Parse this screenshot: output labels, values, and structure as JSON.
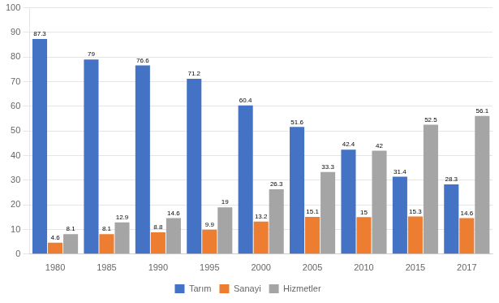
{
  "chart_data": {
    "type": "bar",
    "categories": [
      "1980",
      "1985",
      "1990",
      "1995",
      "2000",
      "2005",
      "2010",
      "2015",
      "2017"
    ],
    "series": [
      {
        "name": "Tarım",
        "color": "#4472C4",
        "values": [
          87.3,
          79,
          76.6,
          71.2,
          60.4,
          51.6,
          42.4,
          31.4,
          28.3
        ]
      },
      {
        "name": "Sanayi",
        "color": "#ED7D31",
        "values": [
          4.6,
          8.1,
          8.8,
          9.9,
          13.2,
          15.1,
          15.0,
          15.3,
          14.6
        ]
      },
      {
        "name": "Hizmetler",
        "color": "#A5A5A5",
        "values": [
          8.1,
          12.9,
          14.6,
          19.0,
          26.3,
          33.3,
          42.0,
          52.5,
          56.1
        ]
      }
    ],
    "ylim": [
      0,
      100
    ],
    "yticks": [
      0,
      10,
      20,
      30,
      40,
      50,
      60,
      70,
      80,
      90,
      100
    ],
    "grid": "y",
    "legend": "bottom",
    "data_labels": true
  }
}
